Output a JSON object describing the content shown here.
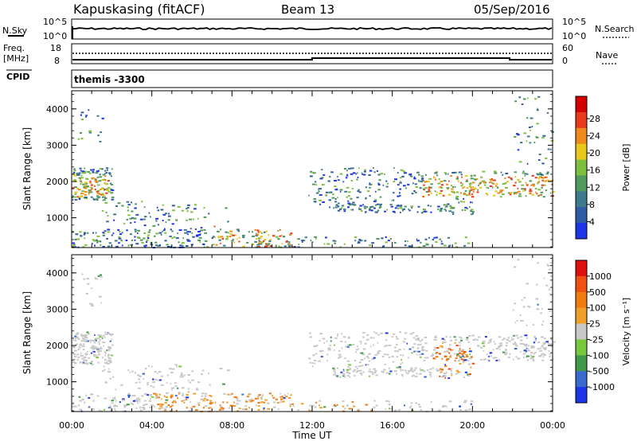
{
  "header": {
    "station": "Kapuskasing (fitACF)",
    "beam": "Beam 13",
    "date": "05/Sep/2016"
  },
  "top_panel": {
    "left_label": "N.Sky",
    "right_label": "N.Search",
    "left_ticks": [
      "10^5",
      "10^0"
    ],
    "right_ticks": [
      "10^5",
      "10^0"
    ]
  },
  "freq_panel": {
    "left_label_line1": "Freq.",
    "left_label_line2": "[MHz]",
    "right_label": "Nave",
    "left_ticks": [
      "18",
      "8"
    ],
    "right_ticks": [
      "60",
      "0"
    ]
  },
  "cpid_label": "CPID",
  "program_label": "themis -3300",
  "chart_data": [
    {
      "type": "heatmap",
      "title": "",
      "xlabel": "Time UT",
      "ylabel": "Slant Range [km]",
      "x_ticks": [
        "00:00",
        "04:00",
        "08:00",
        "12:00",
        "16:00",
        "20:00",
        "00:00"
      ],
      "y_ticks": [
        "1000",
        "2000",
        "3000",
        "4000"
      ],
      "xlim": [
        0,
        24
      ],
      "ylim": [
        180,
        4500
      ],
      "colorbar": {
        "label": "Power [dB]",
        "ticks": [
          "4",
          "8",
          "12",
          "16",
          "20",
          "24",
          "28"
        ],
        "colors": [
          "#1d34e8",
          "#2f5aa6",
          "#3f7a8c",
          "#4f9a5c",
          "#7fbf3f",
          "#e8c81c",
          "#f08a1c",
          "#e83a1c",
          "#d40000"
        ]
      }
    },
    {
      "type": "heatmap",
      "title": "",
      "xlabel": "Time UT",
      "ylabel": "Slant Range [km]",
      "x_ticks": [
        "00:00",
        "04:00",
        "08:00",
        "12:00",
        "16:00",
        "20:00",
        "00:00"
      ],
      "y_ticks": [
        "1000",
        "2000",
        "3000",
        "4000"
      ],
      "xlim": [
        0,
        24
      ],
      "ylim": [
        180,
        4500
      ],
      "colorbar": {
        "label": "Velocity [m s⁻¹]",
        "ticks": [
          "1000",
          "500",
          "100",
          "25",
          "-25",
          "-100",
          "-500",
          "-1000"
        ],
        "colors": [
          "#1d34e8",
          "#3a6ad0",
          "#3e9a4a",
          "#78c83c",
          "#c8c8c8",
          "#f0a02a",
          "#f07c10",
          "#f05010",
          "#e01010"
        ]
      }
    }
  ]
}
